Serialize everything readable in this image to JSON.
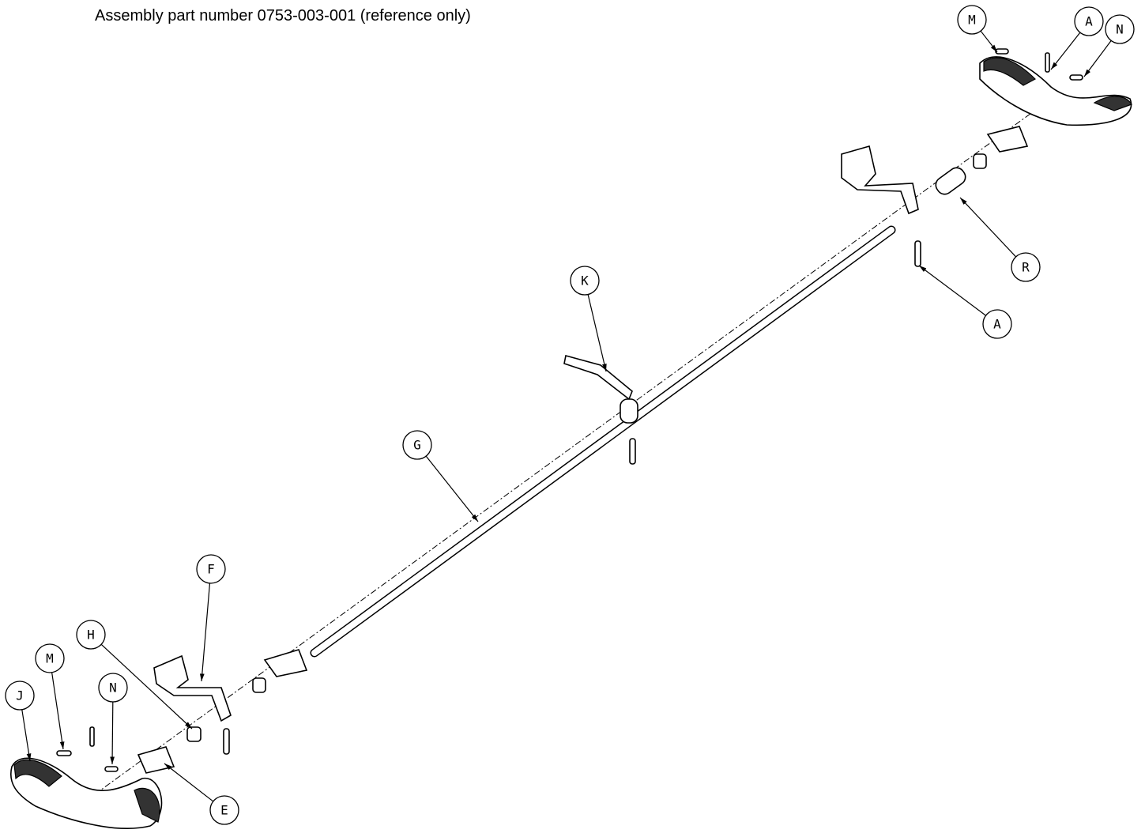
{
  "header": {
    "title": "Assembly part number 0753-003-001 (reference only)"
  },
  "callouts": [
    {
      "label": "M"
    },
    {
      "label": "A"
    },
    {
      "label": "N"
    },
    {
      "label": "R"
    },
    {
      "label": "A"
    },
    {
      "label": "K"
    },
    {
      "label": "G"
    },
    {
      "label": "F"
    },
    {
      "label": "H"
    },
    {
      "label": "M"
    },
    {
      "label": "N"
    },
    {
      "label": "J"
    },
    {
      "label": "E"
    }
  ]
}
